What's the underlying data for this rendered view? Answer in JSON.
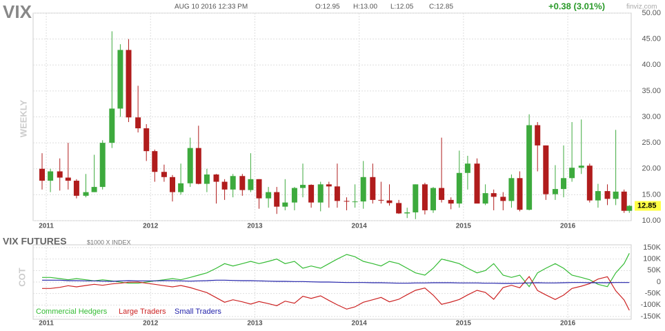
{
  "chart_data": [
    {
      "type": "candlestick",
      "symbol": "VIX",
      "timeframe": "WEEKLY",
      "date": "AUG 10 2016 12:33 PM",
      "open_label": "O:12.95",
      "high_label": "H:13.00",
      "low_label": "L:12.05",
      "close_label": "C:12.85",
      "change": "+0.38 (3.01%)",
      "source": "finviz.com",
      "up_color": "#3daa3d",
      "down_color": "#b01c1c",
      "grid": true,
      "last_price": 12.85,
      "x": [
        2010.96,
        2011.04,
        2011.13,
        2011.21,
        2011.29,
        2011.38,
        2011.46,
        2011.54,
        2011.63,
        2011.71,
        2011.79,
        2011.88,
        2011.96,
        2012.04,
        2012.13,
        2012.21,
        2012.29,
        2012.38,
        2012.46,
        2012.54,
        2012.63,
        2012.71,
        2012.79,
        2012.88,
        2012.96,
        2013.04,
        2013.13,
        2013.21,
        2013.29,
        2013.38,
        2013.46,
        2013.54,
        2013.63,
        2013.71,
        2013.79,
        2013.88,
        2013.96,
        2014.04,
        2014.13,
        2014.21,
        2014.29,
        2014.38,
        2014.46,
        2014.54,
        2014.63,
        2014.71,
        2014.79,
        2014.88,
        2014.96,
        2015.04,
        2015.13,
        2015.21,
        2015.29,
        2015.38,
        2015.46,
        2015.54,
        2015.63,
        2015.71,
        2015.79,
        2015.88,
        2015.96,
        2016.04,
        2016.13,
        2016.21,
        2016.29,
        2016.38,
        2016.46,
        2016.54,
        2016.59
      ],
      "open": [
        20,
        17.7,
        19.5,
        18.3,
        17.7,
        14.8,
        15.5,
        16.5,
        25,
        31.6,
        42.9,
        29.9,
        27.8,
        23.4,
        19.4,
        18.4,
        15.5,
        17.2,
        24,
        17.1,
        18.9,
        17.5,
        16,
        18.6,
        15.9,
        18,
        14.3,
        15.5,
        12.7,
        13.5,
        16.3,
        16.9,
        13.5,
        17,
        16.6,
        13.8,
        13.7,
        13.7,
        18.4,
        14,
        13.9,
        13.4,
        11.4,
        11.6,
        17,
        12,
        16.3,
        14,
        13.3,
        19.2,
        21,
        13.3,
        15.3,
        14.6,
        13.8,
        18.2,
        12.1,
        28.4,
        24.5,
        15.1,
        16.1,
        18.2,
        20.2,
        20.6,
        13.9,
        15.7,
        14.2,
        15.6,
        11.9
      ],
      "high": [
        23,
        20,
        22,
        25,
        18,
        19,
        22.7,
        25.5,
        46.5,
        44,
        45,
        36,
        28.6,
        23.7,
        20.8,
        18.8,
        21,
        26,
        28.3,
        20,
        19,
        18,
        19,
        19,
        23,
        18,
        16.5,
        16.5,
        18,
        16.5,
        21,
        17,
        17.5,
        17.5,
        21,
        14.5,
        17,
        21.5,
        21,
        17.5,
        17,
        14,
        12.5,
        17,
        17.3,
        16.5,
        26,
        14.5,
        23.5,
        22.5,
        22,
        17,
        16,
        15.5,
        18.9,
        19.5,
        30.5,
        29,
        24.5,
        20.7,
        24.5,
        29,
        29.5,
        21,
        17.1,
        17,
        27.5,
        16,
        13
      ],
      "low": [
        16,
        15.5,
        15.8,
        16,
        14.3,
        14.5,
        15.5,
        16,
        24,
        30,
        29,
        27,
        21.5,
        17.5,
        17.5,
        13.7,
        15,
        16.5,
        17,
        15.5,
        13.3,
        14,
        14.5,
        14.8,
        15.5,
        12.3,
        12.5,
        11.3,
        12,
        12,
        14.5,
        12.5,
        11.8,
        12.5,
        12.5,
        12,
        12.5,
        12.3,
        13.3,
        13.3,
        12.9,
        11.3,
        10.5,
        10.3,
        11.2,
        11.5,
        13.5,
        12.2,
        12.5,
        16,
        13.5,
        13,
        12,
        12,
        12.5,
        11.8,
        12,
        19.5,
        14,
        14,
        14.5,
        17.5,
        19,
        13.5,
        12.5,
        13,
        13,
        11.5,
        11.5
      ],
      "close": [
        17.7,
        19.5,
        18.3,
        17.7,
        14.8,
        15.5,
        16.5,
        25,
        31.6,
        42.9,
        29.9,
        27.8,
        23.4,
        19.4,
        18.4,
        15.5,
        17.2,
        24,
        17.1,
        18.9,
        17.5,
        16,
        18.6,
        15.9,
        18,
        14.3,
        15.5,
        12.7,
        13.5,
        16.3,
        16.9,
        13.5,
        17,
        16.6,
        13.8,
        13.7,
        13.7,
        18.4,
        14,
        13.9,
        13.4,
        11.4,
        11.6,
        17,
        12,
        16.3,
        14,
        13.3,
        19.2,
        21,
        13.3,
        15.3,
        14.6,
        13.8,
        18.2,
        12.1,
        28.4,
        24.5,
        15.1,
        16.1,
        18.2,
        20.2,
        20.6,
        13.9,
        15.7,
        14.2,
        15.6,
        11.9,
        12.85
      ],
      "xlim": [
        2010.874,
        2016.608
      ],
      "xticks": [
        2011,
        2012,
        2013,
        2014,
        2015,
        2016
      ],
      "ylim": [
        10,
        50
      ],
      "yticks": [
        {
          "value": 10,
          "label": "10.00"
        },
        {
          "value": 15,
          "label": "15.00"
        },
        {
          "value": 20,
          "label": "20.00"
        },
        {
          "value": 25,
          "label": "25.00"
        },
        {
          "value": 30,
          "label": "30.00"
        },
        {
          "value": 35,
          "label": "35.00"
        },
        {
          "value": 40,
          "label": "40.00"
        },
        {
          "value": 45,
          "label": "45.00"
        },
        {
          "value": 50,
          "label": "50.00"
        }
      ]
    },
    {
      "type": "line",
      "title": "VIX FUTURES",
      "subtitle": "$1000 X INDEX",
      "axis_label": "COT",
      "grid": true,
      "x": [
        2010.96,
        2011.04,
        2011.13,
        2011.21,
        2011.29,
        2011.38,
        2011.46,
        2011.54,
        2011.63,
        2011.71,
        2011.79,
        2011.88,
        2011.96,
        2012.04,
        2012.13,
        2012.21,
        2012.29,
        2012.38,
        2012.46,
        2012.54,
        2012.63,
        2012.71,
        2012.79,
        2012.88,
        2012.96,
        2013.04,
        2013.13,
        2013.21,
        2013.29,
        2013.38,
        2013.46,
        2013.54,
        2013.63,
        2013.71,
        2013.79,
        2013.88,
        2013.96,
        2014.04,
        2014.13,
        2014.21,
        2014.29,
        2014.38,
        2014.46,
        2014.54,
        2014.63,
        2014.71,
        2014.79,
        2014.88,
        2014.96,
        2015.04,
        2015.13,
        2015.21,
        2015.29,
        2015.38,
        2015.46,
        2015.54,
        2015.63,
        2015.71,
        2015.79,
        2015.88,
        2015.96,
        2016.04,
        2016.13,
        2016.21,
        2016.29,
        2016.38,
        2016.46,
        2016.54,
        2016.59
      ],
      "series": [
        {
          "name": "Commercial Hedgers",
          "color": "#33bb33",
          "values": [
            20000,
            20000,
            15000,
            10000,
            15000,
            10000,
            5000,
            10000,
            5000,
            0,
            -5000,
            -5000,
            0,
            5000,
            10000,
            15000,
            10000,
            20000,
            30000,
            40000,
            60000,
            80000,
            70000,
            80000,
            90000,
            80000,
            90000,
            100000,
            80000,
            90000,
            60000,
            70000,
            60000,
            80000,
            100000,
            120000,
            110000,
            90000,
            80000,
            70000,
            90000,
            80000,
            60000,
            40000,
            30000,
            60000,
            100000,
            90000,
            80000,
            60000,
            40000,
            50000,
            80000,
            30000,
            20000,
            30000,
            -20000,
            40000,
            60000,
            80000,
            60000,
            30000,
            20000,
            10000,
            -10000,
            -20000,
            40000,
            80000,
            125000
          ]
        },
        {
          "name": "Large Traders",
          "color": "#cc2222",
          "values": [
            -28000,
            -28000,
            -23000,
            -16000,
            -21000,
            -15000,
            -10000,
            -14000,
            -8000,
            -5000,
            -1000,
            0,
            -5000,
            -10000,
            -16000,
            -21000,
            -15000,
            -24000,
            -35000,
            -46000,
            -68000,
            -88000,
            -77000,
            -86000,
            -96000,
            -85000,
            -94000,
            -103000,
            -83000,
            -92000,
            -62000,
            -71000,
            -60000,
            -80000,
            -99000,
            -118000,
            -108000,
            -88000,
            -77000,
            -67000,
            -86000,
            -75000,
            -55000,
            -36000,
            -26000,
            -57000,
            -97000,
            -87000,
            -76000,
            -56000,
            -36000,
            -45000,
            -75000,
            -24000,
            -14000,
            -25000,
            24000,
            -37000,
            -56000,
            -76000,
            -57000,
            -28000,
            -18000,
            -7000,
            13000,
            23000,
            -38000,
            -78000,
            -123000
          ]
        },
        {
          "name": "Small Traders",
          "color": "#2222aa",
          "values": [
            8000,
            8000,
            8000,
            6000,
            6000,
            5000,
            5000,
            4000,
            3000,
            5000,
            6000,
            5000,
            5000,
            5000,
            6000,
            6000,
            5000,
            4000,
            5000,
            6000,
            8000,
            8000,
            7000,
            6000,
            6000,
            5000,
            4000,
            3000,
            3000,
            2000,
            2000,
            1000,
            0,
            0,
            -1000,
            -2000,
            -2000,
            -2000,
            -3000,
            -3000,
            -4000,
            -5000,
            -5000,
            -4000,
            -4000,
            -3000,
            -3000,
            -3000,
            -4000,
            -4000,
            -4000,
            -5000,
            -5000,
            -6000,
            -6000,
            -5000,
            -4000,
            -3000,
            -4000,
            -4000,
            -3000,
            -2000,
            -2000,
            -3000,
            -3000,
            -3000,
            -2000,
            -2000,
            -2000
          ]
        }
      ],
      "xlim": [
        2010.874,
        2016.608
      ],
      "xticks": [
        2011,
        2012,
        2013,
        2014,
        2015,
        2016
      ],
      "ylim": [
        -162000,
        162000
      ],
      "yticks": [
        {
          "value": 150000,
          "label": "150K"
        },
        {
          "value": 100000,
          "label": "100K"
        },
        {
          "value": 50000,
          "label": "50K"
        },
        0,
        {
          "value": -50000,
          "label": "-50K"
        },
        {
          "value": -100000,
          "label": "-100K"
        },
        {
          "value": -150000,
          "label": "-150K"
        }
      ]
    }
  ]
}
